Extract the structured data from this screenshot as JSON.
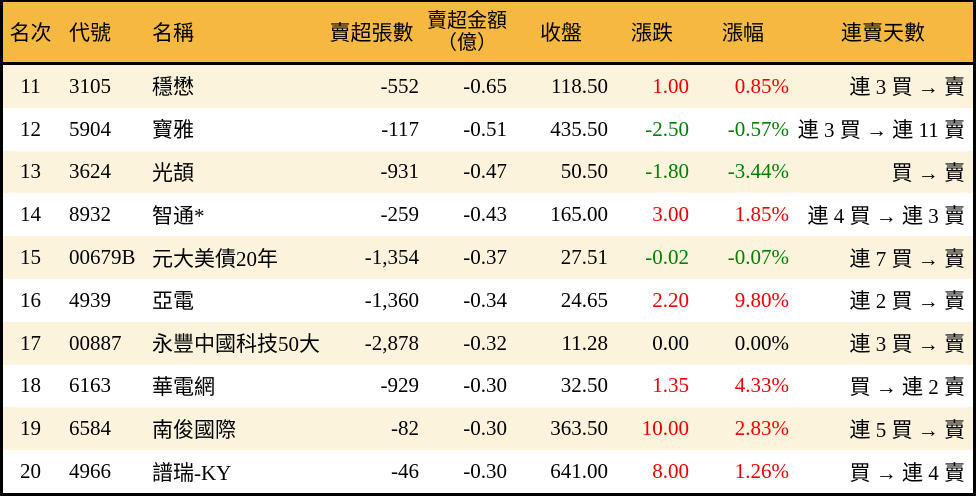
{
  "colors": {
    "border": "#000000",
    "header_bg": "#F5B942",
    "alt_row_bg": "#FCF3DC",
    "row_bg": "#FFFFFF",
    "up": "#EE0000",
    "down": "#007F00",
    "neutral": "#000000"
  },
  "header": {
    "rank": "名次",
    "code": "代號",
    "name": "名稱",
    "sell_volume": "賣超張數",
    "sell_amount_line1": "賣超金額",
    "sell_amount_line2": "（億）",
    "close": "收盤",
    "change": "漲跌",
    "change_pct": "漲幅",
    "streak": "連賣天數"
  },
  "chart_data": {
    "type": "table",
    "title": "",
    "columns": [
      "名次",
      "代號",
      "名稱",
      "賣超張數",
      "賣超金額（億）",
      "收盤",
      "漲跌",
      "漲幅",
      "連賣天數"
    ],
    "rows": [
      {
        "rank": "11",
        "code": "3105",
        "name": "穩懋",
        "sell_volume": "-552",
        "sell_amount": "-0.65",
        "close": "118.50",
        "change": "1.00",
        "change_pct": "0.85%",
        "trend": "up",
        "streak": "連 3 買 → 賣"
      },
      {
        "rank": "12",
        "code": "5904",
        "name": "寶雅",
        "sell_volume": "-117",
        "sell_amount": "-0.51",
        "close": "435.50",
        "change": "-2.50",
        "change_pct": "-0.57%",
        "trend": "down",
        "streak": "連 3 買 → 連 11 賣"
      },
      {
        "rank": "13",
        "code": "3624",
        "name": "光頡",
        "sell_volume": "-931",
        "sell_amount": "-0.47",
        "close": "50.50",
        "change": "-1.80",
        "change_pct": "-3.44%",
        "trend": "down",
        "streak": "買 → 賣"
      },
      {
        "rank": "14",
        "code": "8932",
        "name": "智通*",
        "sell_volume": "-259",
        "sell_amount": "-0.43",
        "close": "165.00",
        "change": "3.00",
        "change_pct": "1.85%",
        "trend": "up",
        "streak": "連 4 買 → 連 3 賣"
      },
      {
        "rank": "15",
        "code": "00679B",
        "name": "元大美債20年",
        "sell_volume": "-1,354",
        "sell_amount": "-0.37",
        "close": "27.51",
        "change": "-0.02",
        "change_pct": "-0.07%",
        "trend": "down",
        "streak": "連 7 買 → 賣"
      },
      {
        "rank": "16",
        "code": "4939",
        "name": "亞電",
        "sell_volume": "-1,360",
        "sell_amount": "-0.34",
        "close": "24.65",
        "change": "2.20",
        "change_pct": "9.80%",
        "trend": "up",
        "streak": "連 2 買 → 賣"
      },
      {
        "rank": "17",
        "code": "00887",
        "name": "永豐中國科技50大",
        "sell_volume": "-2,878",
        "sell_amount": "-0.32",
        "close": "11.28",
        "change": "0.00",
        "change_pct": "0.00%",
        "trend": "flat",
        "streak": "連 3 買 → 賣"
      },
      {
        "rank": "18",
        "code": "6163",
        "name": "華電網",
        "sell_volume": "-929",
        "sell_amount": "-0.30",
        "close": "32.50",
        "change": "1.35",
        "change_pct": "4.33%",
        "trend": "up",
        "streak": "買 → 連 2 賣"
      },
      {
        "rank": "19",
        "code": "6584",
        "name": "南俊國際",
        "sell_volume": "-82",
        "sell_amount": "-0.30",
        "close": "363.50",
        "change": "10.00",
        "change_pct": "2.83%",
        "trend": "up",
        "streak": "連 5 買 → 賣"
      },
      {
        "rank": "20",
        "code": "4966",
        "name": "譜瑞-KY",
        "sell_volume": "-46",
        "sell_amount": "-0.30",
        "close": "641.00",
        "change": "8.00",
        "change_pct": "1.26%",
        "trend": "up",
        "streak": "買 → 連 4 賣"
      }
    ]
  }
}
